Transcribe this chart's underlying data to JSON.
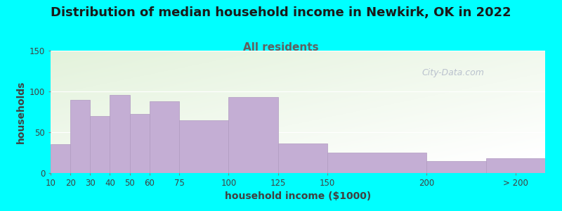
{
  "title": "Distribution of median household income in Newkirk, OK in 2022",
  "subtitle": "All residents",
  "xlabel": "household income ($1000)",
  "ylabel": "households",
  "background_color": "#00FFFF",
  "bar_color": "#c4aed4",
  "bar_edge_color": "#b09ac0",
  "watermark": "City-Data.com",
  "categories": [
    "10",
    "20",
    "30",
    "40",
    "50",
    "60",
    "75",
    "100",
    "125",
    "150",
    "200",
    "> 200"
  ],
  "bar_lefts": [
    10,
    20,
    30,
    40,
    50,
    60,
    75,
    100,
    125,
    150,
    200,
    230
  ],
  "bar_widths": [
    10,
    10,
    10,
    10,
    10,
    15,
    25,
    25,
    25,
    50,
    30,
    30
  ],
  "bar_heights": [
    35,
    90,
    70,
    96,
    72,
    88,
    65,
    93,
    36,
    25,
    15,
    18
  ],
  "ylim": [
    0,
    150
  ],
  "yticks": [
    0,
    50,
    100,
    150
  ],
  "xtick_positions": [
    10,
    20,
    30,
    40,
    50,
    60,
    75,
    100,
    125,
    150,
    200,
    245
  ],
  "xtick_labels": [
    "10",
    "20",
    "30",
    "40",
    "50",
    "60",
    "75",
    "100",
    "125",
    "150",
    "200",
    "> 200"
  ],
  "title_fontsize": 13,
  "subtitle_fontsize": 11,
  "axis_label_fontsize": 10,
  "tick_fontsize": 8.5,
  "title_color": "#1a1a1a",
  "subtitle_color": "#606060",
  "watermark_color": "#b0b8c8",
  "axis_label_color": "#404040"
}
